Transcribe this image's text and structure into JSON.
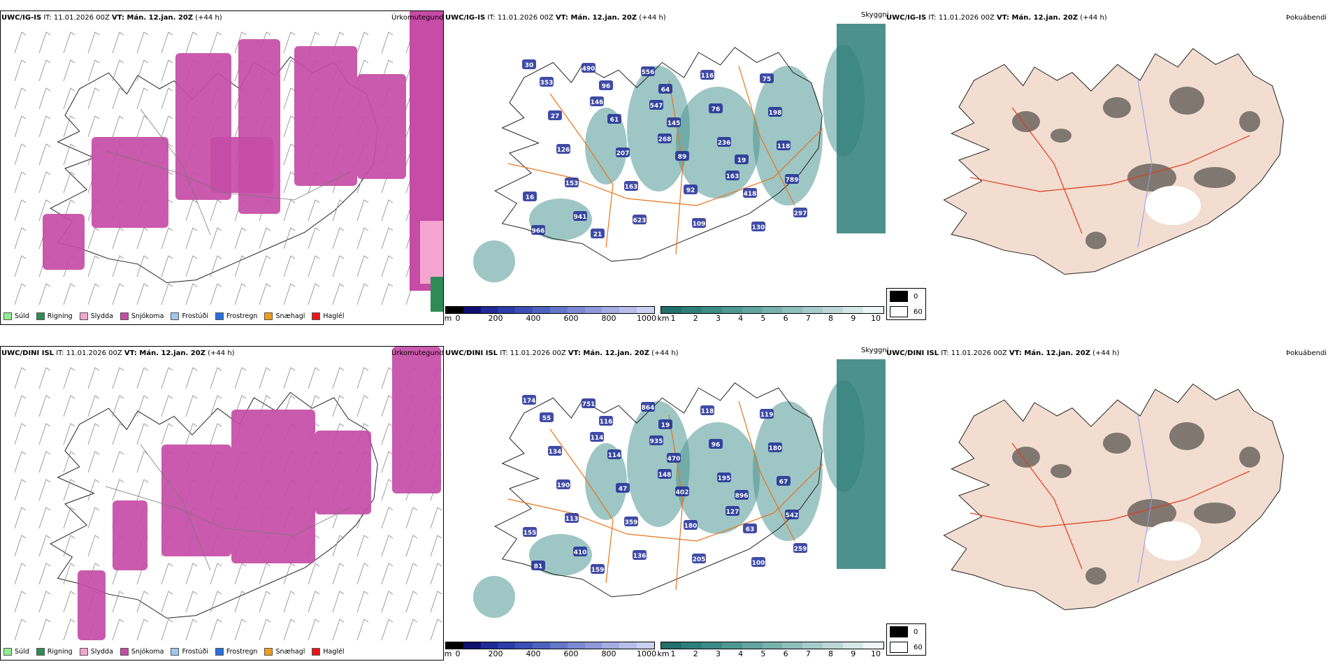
{
  "rows": [
    {
      "precip": {
        "title_model": "UWC/IG-IS",
        "title_it": " IT: 11.01.2026 00Z ",
        "title_vt": "VT: Mán. 12.jan. 20Z",
        "title_lead": " (+44 h)",
        "type": "Úrkomutegund"
      },
      "cloud": {
        "title_model": "UWC/IG-IS",
        "title_it": " IT: 11.01.2026 00Z ",
        "title_vt": "VT: Mán. 12.jan. 20Z",
        "title_lead": " (+44 h)",
        "type": "Skyggni"
      },
      "fog": {
        "title_model": "UWC/IG-IS",
        "title_it": " IT: 11.01.2026 00Z ",
        "title_vt": "VT: Mán. 12.jan. 20Z",
        "title_lead": " (+44 h)",
        "type": "Þokuábendi"
      },
      "labels": [
        "30",
        "146",
        "268",
        "163",
        "297",
        "490",
        "547",
        "236",
        "789",
        "941",
        "556",
        "76",
        "118",
        "153",
        "623",
        "116",
        "198",
        "126",
        "163",
        "109",
        "75",
        "27",
        "207",
        "92",
        "130",
        "353",
        "61",
        "89",
        "418",
        "966",
        "96",
        "145",
        "19",
        "16",
        "21",
        "64"
      ]
    },
    {
      "precip": {
        "title_model": "UWC/DINI ISL",
        "title_it": " IT: 11.01.2026 00Z ",
        "title_vt": "VT: Mán. 12.jan. 20Z",
        "title_lead": " (+44 h)",
        "type": "Úrkomutegund"
      },
      "cloud": {
        "title_model": "UWC/DINI ISL",
        "title_it": " IT: 11.01.2026 00Z ",
        "title_vt": "VT: Mán. 12.jan. 20Z",
        "title_lead": " (+44 h)",
        "type": "Skyggni"
      },
      "fog": {
        "title_model": "UWC/DINI ISL",
        "title_it": " IT: 11.01.2026 00Z ",
        "title_vt": "VT: Mán. 12.jan. 20Z",
        "title_lead": " (+44 h)",
        "type": "Þokuábendi"
      },
      "labels": [
        "174",
        "114",
        "148",
        "127",
        "259",
        "751",
        "935",
        "195",
        "542",
        "410",
        "864",
        "96",
        "67",
        "113",
        "136",
        "118",
        "180",
        "190",
        "359",
        "205",
        "119",
        "134",
        "47",
        "180",
        "100",
        "55",
        "114",
        "402",
        "63",
        "81",
        "116",
        "470",
        "896",
        "155",
        "159",
        "19"
      ]
    }
  ],
  "precip_legend": [
    {
      "label": "Súld",
      "color": "#90ee90"
    },
    {
      "label": "Rigning",
      "color": "#2e8b57"
    },
    {
      "label": "Slydda",
      "color": "#f4a6d0"
    },
    {
      "label": "Snjókoma",
      "color": "#c64ca6"
    },
    {
      "label": "Frostúði",
      "color": "#9ec8f0"
    },
    {
      "label": "Frostregn",
      "color": "#2a6fdb"
    },
    {
      "label": "Snæhagl",
      "color": "#f29d18"
    },
    {
      "label": "Haglél",
      "color": "#e8141c"
    }
  ],
  "cloudbase": {
    "unit": "m",
    "ticks": [
      "0",
      "200",
      "400",
      "600",
      "800",
      "1000"
    ],
    "colors": [
      "#000000",
      "#101070",
      "#1f2b96",
      "#2a3da8",
      "#3a50b5",
      "#4d63c0",
      "#6577c9",
      "#7b8ad2",
      "#9099da",
      "#a5ace2",
      "#b8bee9",
      "#ccd0f0"
    ]
  },
  "visibility": {
    "unit": "km",
    "ticks": [
      "1",
      "2",
      "3",
      "4",
      "5",
      "6",
      "7",
      "8",
      "9",
      "10"
    ],
    "colors": [
      "#226f6c",
      "#2e7e7a",
      "#3c8b87",
      "#4f9894",
      "#63a5a1",
      "#78b2ae",
      "#8ebfbc",
      "#a5ccca",
      "#bcd9d7",
      "#d5e8e6",
      "#eef6f5"
    ]
  },
  "fog_legend": [
    {
      "label": "0",
      "color": "#000000"
    },
    {
      "label": "60",
      "color": "#ffffff"
    }
  ]
}
